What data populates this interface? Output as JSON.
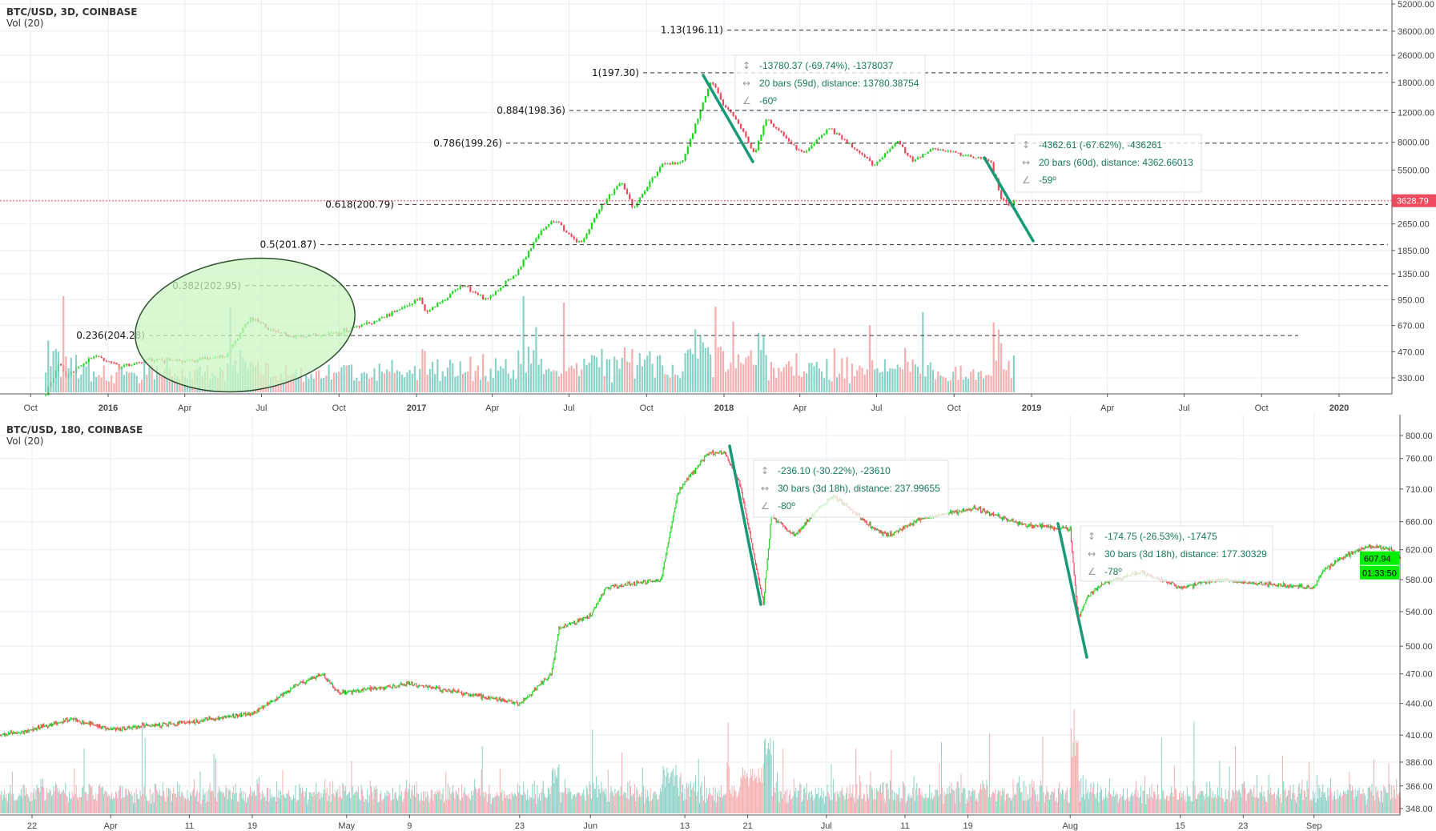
{
  "colors": {
    "up": "#1ed81e",
    "down": "#f0475a",
    "vol_up": "#76c9bd",
    "vol_down": "#f5a0a0",
    "trend": "#169a78",
    "grid": "#e6eef4",
    "measure_text": "#167a5e",
    "ellipse_fill": "#c9f5c2",
    "ellipse_stroke": "#2f4f2f",
    "last_price_top": "#ef4b5f",
    "last_price_bottom": "#00f000"
  },
  "chart_data": [
    {
      "type": "candlestick",
      "title": "BTC/USD, 3D, COINBASE",
      "indicator": "Vol (20)",
      "y_scale": "log",
      "ylim": [
        300,
        52000
      ],
      "y_ticks": [
        "52000.00",
        "36000.00",
        "26000.00",
        "18000.00",
        "12000.00",
        "8000.00",
        "5500.00",
        "2650.00",
        "1850.00",
        "1350.00",
        "950.00",
        "670.00",
        "470.00",
        "330.00"
      ],
      "x_ticks": [
        {
          "date": "2015-10-01",
          "label": "Oct"
        },
        {
          "date": "2016-01-01",
          "label": "2016"
        },
        {
          "date": "2016-04-01",
          "label": "Apr"
        },
        {
          "date": "2016-07-01",
          "label": "Jul"
        },
        {
          "date": "2016-10-01",
          "label": "Oct"
        },
        {
          "date": "2017-01-01",
          "label": "2017"
        },
        {
          "date": "2017-04-01",
          "label": "Apr"
        },
        {
          "date": "2017-07-01",
          "label": "Jul"
        },
        {
          "date": "2017-10-01",
          "label": "Oct"
        },
        {
          "date": "2018-01-01",
          "label": "2018"
        },
        {
          "date": "2018-04-01",
          "label": "Apr"
        },
        {
          "date": "2018-07-01",
          "label": "Jul"
        },
        {
          "date": "2018-10-01",
          "label": "Oct"
        },
        {
          "date": "2019-01-01",
          "label": "2019"
        },
        {
          "date": "2019-04-01",
          "label": "Apr"
        },
        {
          "date": "2019-07-01",
          "label": "Jul"
        },
        {
          "date": "2019-10-01",
          "label": "Oct"
        },
        {
          "date": "2020-01-01",
          "label": "2020"
        }
      ],
      "bar_days": 3,
      "price_path": [
        [
          "2015-10-19",
          260
        ],
        [
          "2015-11-04",
          400
        ],
        [
          "2015-11-12",
          330
        ],
        [
          "2015-12-15",
          450
        ],
        [
          "2016-01-15",
          380
        ],
        [
          "2016-02-20",
          420
        ],
        [
          "2016-04-01",
          415
        ],
        [
          "2016-05-20",
          440
        ],
        [
          "2016-06-17",
          750
        ],
        [
          "2016-07-10",
          650
        ],
        [
          "2016-08-05",
          570
        ],
        [
          "2016-10-01",
          610
        ],
        [
          "2016-11-15",
          720
        ],
        [
          "2016-12-25",
          900
        ],
        [
          "2017-01-05",
          1000
        ],
        [
          "2017-01-12",
          800
        ],
        [
          "2017-02-25",
          1150
        ],
        [
          "2017-03-25",
          950
        ],
        [
          "2017-04-30",
          1350
        ],
        [
          "2017-05-25",
          2300
        ],
        [
          "2017-06-12",
          2800
        ],
        [
          "2017-07-15",
          2000
        ],
        [
          "2017-08-05",
          3200
        ],
        [
          "2017-09-01",
          4700
        ],
        [
          "2017-09-15",
          3300
        ],
        [
          "2017-10-20",
          6000
        ],
        [
          "2017-11-12",
          6000
        ],
        [
          "2017-12-17",
          19000
        ],
        [
          "2017-12-30",
          13500
        ],
        [
          "2018-01-15",
          11000
        ],
        [
          "2018-02-06",
          6900
        ],
        [
          "2018-02-20",
          11000
        ],
        [
          "2018-03-10",
          9000
        ],
        [
          "2018-04-06",
          6800
        ],
        [
          "2018-05-05",
          9700
        ],
        [
          "2018-06-29",
          5900
        ],
        [
          "2018-07-25",
          8200
        ],
        [
          "2018-08-14",
          6200
        ],
        [
          "2018-09-05",
          7300
        ],
        [
          "2018-11-13",
          6300
        ],
        [
          "2018-11-25",
          3800
        ],
        [
          "2018-12-07",
          3400
        ],
        [
          "2018-12-12",
          3628.79
        ]
      ],
      "last_price": "3628.79",
      "fib_levels": [
        {
          "label": "1.13(196.11)",
          "price": 36500
        },
        {
          "label": "1(197.30)",
          "price": 20500
        },
        {
          "label": "0.884(198.36)",
          "price": 12300
        },
        {
          "label": "0.786(199.26)",
          "price": 7900
        },
        {
          "label": "0.618(200.79)",
          "price": 3450
        },
        {
          "label": "0.5(201.87)",
          "price": 2000
        },
        {
          "label": "0.382(202.95)",
          "price": 1150
        },
        {
          "label": "0.236(204.28)",
          "price": 585
        }
      ],
      "measurements": [
        {
          "price": "-13780.37 (-69.74%), -1378037",
          "bars": "20 bars (59d), distance: 13780.38754",
          "angle": "-60º"
        },
        {
          "price": "-4362.61 (-67.62%), -436261",
          "bars": "20 bars (60d), distance: 4362.66013",
          "angle": "-59º"
        }
      ]
    },
    {
      "type": "candlestick",
      "title": "BTC/USD, 180, COINBASE",
      "indicator": "Vol (20)",
      "y_scale": "log",
      "ylim": [
        345,
        820
      ],
      "y_ticks": [
        "800.00",
        "760.00",
        "710.00",
        "660.00",
        "620.00",
        "580.00",
        "540.00",
        "500.00",
        "470.00",
        "440.00",
        "410.00",
        "386.00",
        "366.00",
        "348.00"
      ],
      "x_ticks": [
        {
          "date": "2016-03-22",
          "label": "22"
        },
        {
          "date": "2016-04-01",
          "label": "Apr"
        },
        {
          "date": "2016-04-11",
          "label": "11"
        },
        {
          "date": "2016-04-19",
          "label": "19"
        },
        {
          "date": "2016-05-01",
          "label": "May"
        },
        {
          "date": "2016-05-09",
          "label": "9"
        },
        {
          "date": "2016-05-23",
          "label": "23"
        },
        {
          "date": "2016-06-01",
          "label": "Jun"
        },
        {
          "date": "2016-06-13",
          "label": "13"
        },
        {
          "date": "2016-06-21",
          "label": "21"
        },
        {
          "date": "2016-07-01",
          "label": "Jul"
        },
        {
          "date": "2016-07-11",
          "label": "11"
        },
        {
          "date": "2016-07-19",
          "label": "19"
        },
        {
          "date": "2016-08-01",
          "label": "Aug"
        },
        {
          "date": "2016-08-15",
          "label": "15"
        },
        {
          "date": "2016-08-23",
          "label": "23"
        },
        {
          "date": "2016-09-01",
          "label": "Sep"
        }
      ],
      "bar_hours": 3,
      "price_path": [
        [
          "2016-03-18",
          410
        ],
        [
          "2016-03-22",
          415
        ],
        [
          "2016-03-27",
          425
        ],
        [
          "2016-04-01",
          415
        ],
        [
          "2016-04-11",
          422
        ],
        [
          "2016-04-19",
          430
        ],
        [
          "2016-04-25",
          460
        ],
        [
          "2016-04-28",
          470
        ],
        [
          "2016-04-30",
          450
        ],
        [
          "2016-05-09",
          460
        ],
        [
          "2016-05-23",
          440
        ],
        [
          "2016-05-27",
          470
        ],
        [
          "2016-05-28",
          520
        ],
        [
          "2016-06-01",
          535
        ],
        [
          "2016-06-03",
          570
        ],
        [
          "2016-06-10",
          580
        ],
        [
          "2016-06-12",
          700
        ],
        [
          "2016-06-13",
          720
        ],
        [
          "2016-06-16",
          770
        ],
        [
          "2016-06-18",
          770
        ],
        [
          "2016-06-20",
          720
        ],
        [
          "2016-06-22",
          600
        ],
        [
          "2016-06-23",
          550
        ],
        [
          "2016-06-24",
          670
        ],
        [
          "2016-06-27",
          640
        ],
        [
          "2016-06-30",
          680
        ],
        [
          "2016-07-02",
          700
        ],
        [
          "2016-07-07",
          650
        ],
        [
          "2016-07-09",
          640
        ],
        [
          "2016-07-13",
          665
        ],
        [
          "2016-07-20",
          680
        ],
        [
          "2016-07-26",
          655
        ],
        [
          "2016-08-01",
          650
        ],
        [
          "2016-08-02",
          530
        ],
        [
          "2016-08-03",
          555
        ],
        [
          "2016-08-05",
          575
        ],
        [
          "2016-08-10",
          590
        ],
        [
          "2016-08-15",
          570
        ],
        [
          "2016-08-20",
          580
        ],
        [
          "2016-08-25",
          575
        ],
        [
          "2016-09-01",
          570
        ],
        [
          "2016-09-02",
          590
        ],
        [
          "2016-09-05",
          612
        ],
        [
          "2016-09-08",
          625
        ],
        [
          "2016-09-11",
          620
        ],
        [
          "2016-09-12",
          607.94
        ]
      ],
      "last_price": "607.94",
      "countdown": "01:33:50",
      "measurements": [
        {
          "price": "-236.10 (-30.22%), -23610",
          "bars": "30 bars (3d 18h), distance: 237.99655",
          "angle": "-80º"
        },
        {
          "price": "-174.75 (-26.53%), -17475",
          "bars": "30 bars (3d 18h), distance: 177.30329",
          "angle": "-78º"
        }
      ]
    }
  ]
}
